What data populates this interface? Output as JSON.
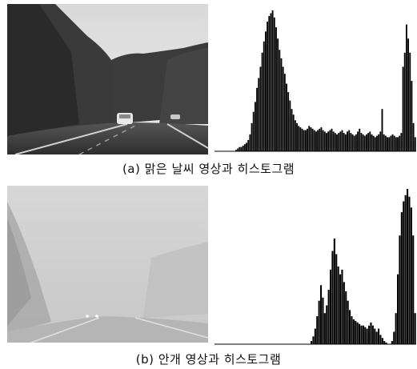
{
  "figure": {
    "panels": [
      {
        "id": "a",
        "caption": "(a) 맑은 날씨 영상과 히스토그램",
        "photo_icon": "clear-weather-road-photo",
        "histogram_icon": "bimodal-histogram",
        "histogram_bins": [
          0,
          0,
          0,
          0,
          0,
          0,
          0,
          0,
          0,
          0,
          0,
          0,
          1,
          2,
          3,
          3,
          4,
          5,
          6,
          8,
          12,
          20,
          28,
          35,
          45,
          52,
          60,
          70,
          78,
          85,
          92,
          96,
          98,
          100,
          95,
          88,
          80,
          72,
          66,
          60,
          55,
          48,
          42,
          36,
          30,
          26,
          22,
          20,
          18,
          17,
          16,
          15,
          15,
          16,
          18,
          17,
          16,
          15,
          14,
          15,
          16,
          17,
          15,
          14,
          13,
          14,
          15,
          16,
          14,
          13,
          12,
          13,
          14,
          15,
          13,
          12,
          14,
          15,
          13,
          12,
          11,
          12,
          14,
          16,
          13,
          12,
          11,
          12,
          13,
          14,
          12,
          11,
          10,
          11,
          12,
          14,
          30,
          12,
          11,
          10,
          10,
          11,
          12,
          11,
          10,
          10,
          11,
          13,
          60,
          70,
          90,
          80,
          70,
          50,
          20,
          10
        ]
      },
      {
        "id": "b",
        "caption": "(b) 안개 영상과 히스토그램",
        "photo_icon": "foggy-road-photo",
        "histogram_icon": "high-contrast-histogram",
        "histogram_bins": [
          0,
          0,
          0,
          0,
          0,
          0,
          0,
          0,
          0,
          0,
          0,
          0,
          0,
          0,
          0,
          0,
          0,
          0,
          0,
          0,
          0,
          0,
          0,
          0,
          0,
          0,
          0,
          0,
          0,
          0,
          0,
          0,
          0,
          0,
          0,
          0,
          0,
          0,
          0,
          0,
          0,
          0,
          0,
          0,
          0,
          0,
          0,
          0,
          0,
          0,
          2,
          5,
          10,
          18,
          28,
          38,
          30,
          20,
          25,
          35,
          48,
          60,
          68,
          58,
          50,
          45,
          48,
          40,
          34,
          28,
          22,
          18,
          16,
          15,
          14,
          13,
          12,
          12,
          11,
          10,
          12,
          14,
          12,
          10,
          8,
          10,
          6,
          4,
          2,
          1,
          0,
          0,
          2,
          8,
          20,
          45,
          70,
          85,
          92,
          96,
          100,
          95,
          88,
          70,
          20
        ]
      }
    ]
  }
}
